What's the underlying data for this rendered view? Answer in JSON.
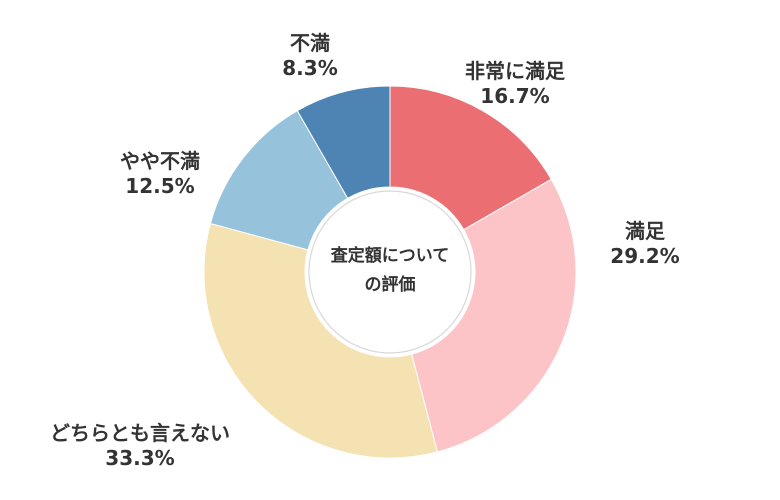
{
  "chart_data": {
    "type": "pie",
    "variant": "donut",
    "center_label": [
      "査定額について",
      "の評価"
    ],
    "slices": [
      {
        "label": "非常に満足",
        "value": 16.7,
        "value_text": "16.7%",
        "color": "#EB6F72"
      },
      {
        "label": "満足",
        "value": 29.2,
        "value_text": "29.2%",
        "color": "#FDC4C8"
      },
      {
        "label": "どちらとも言えない",
        "value": 33.3,
        "value_text": "33.3%",
        "color": "#F5E2B3"
      },
      {
        "label": "やや不満",
        "value": 12.5,
        "value_text": "12.5%",
        "color": "#96C2DC"
      },
      {
        "label": "不満",
        "value": 8.3,
        "value_text": "8.3%",
        "color": "#4E84B4"
      }
    ]
  }
}
